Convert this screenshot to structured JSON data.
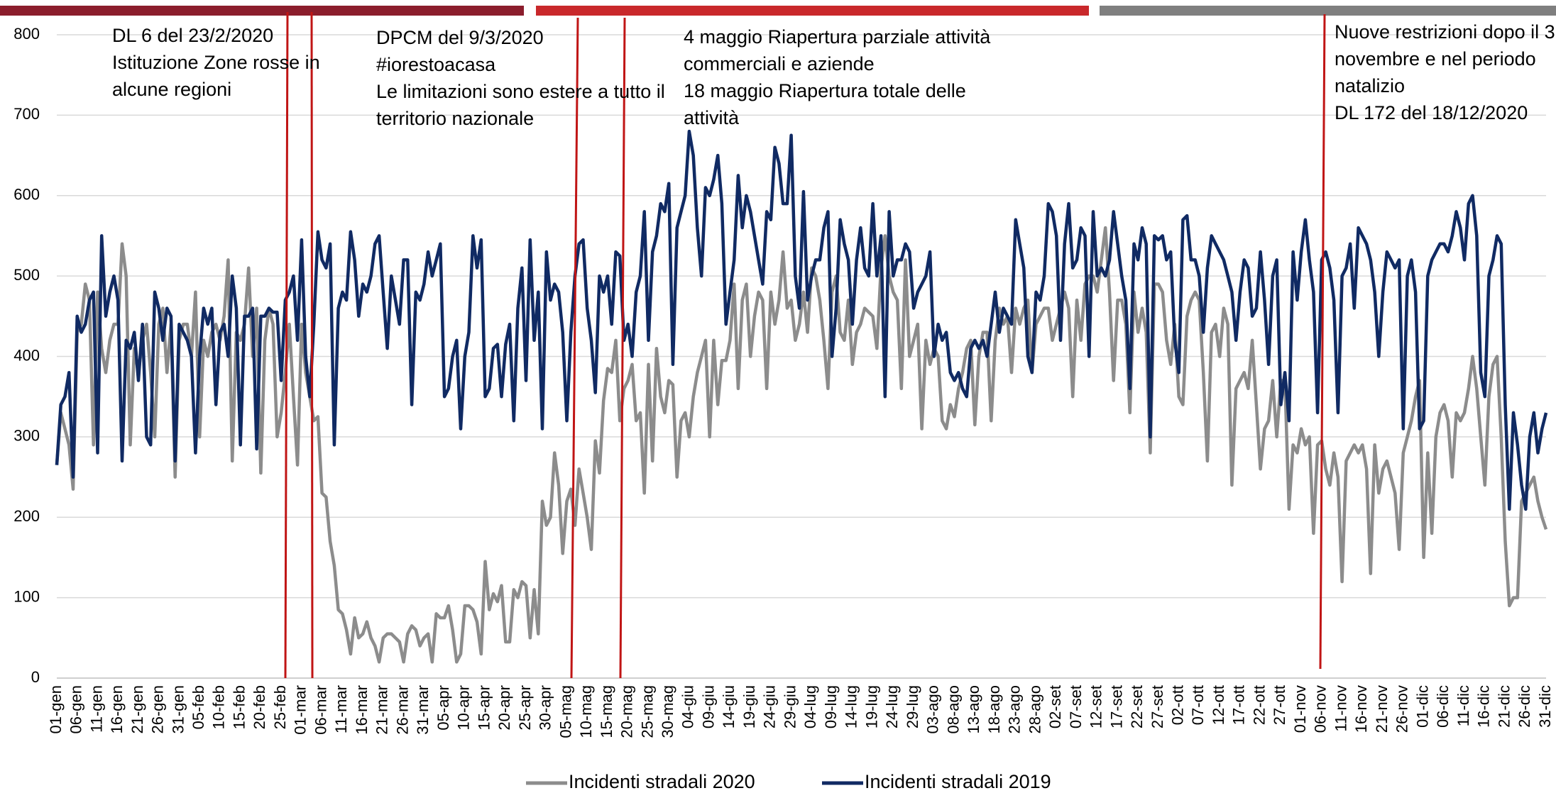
{
  "chart_data": {
    "type": "line",
    "categories": [
      "01-gen",
      null,
      null,
      null,
      null,
      "06-gen",
      null,
      null,
      null,
      null,
      "11-gen",
      null,
      null,
      null,
      null,
      "16-gen",
      null,
      null,
      null,
      null,
      "21-gen",
      null,
      null,
      null,
      null,
      "26-gen",
      null,
      null,
      null,
      null,
      "31-gen",
      null,
      null,
      null,
      null,
      "05-feb",
      null,
      null,
      null,
      null,
      "10-feb",
      null,
      null,
      null,
      null,
      "15-feb",
      null,
      null,
      null,
      null,
      "20-feb",
      null,
      null,
      null,
      null,
      "25-feb",
      null,
      null,
      null,
      null,
      "01-mar",
      null,
      null,
      null,
      null,
      "06-mar",
      null,
      null,
      null,
      null,
      "11-mar",
      null,
      null,
      null,
      null,
      "16-mar",
      null,
      null,
      null,
      null,
      "21-mar",
      null,
      null,
      null,
      null,
      "26-mar",
      null,
      null,
      null,
      null,
      "31-mar",
      null,
      null,
      null,
      null,
      "05-apr",
      null,
      null,
      null,
      null,
      "10-apr",
      null,
      null,
      null,
      null,
      "15-apr",
      null,
      null,
      null,
      null,
      "20-apr",
      null,
      null,
      null,
      null,
      "25-apr",
      null,
      null,
      null,
      null,
      "30-apr",
      null,
      null,
      null,
      null,
      "05-mag",
      null,
      null,
      null,
      null,
      "10-mag",
      null,
      null,
      null,
      null,
      "15-mag",
      null,
      null,
      null,
      null,
      "20-mag",
      null,
      null,
      null,
      null,
      "25-mag",
      null,
      null,
      null,
      null,
      "30-mag",
      null,
      null,
      null,
      null,
      "04-giu",
      null,
      null,
      null,
      null,
      "09-giu",
      null,
      null,
      null,
      null,
      "14-giu",
      null,
      null,
      null,
      null,
      "19-giu",
      null,
      null,
      null,
      null,
      "24-giu",
      null,
      null,
      null,
      null,
      "29-giu",
      null,
      null,
      null,
      null,
      "04-lug",
      null,
      null,
      null,
      null,
      "09-lug",
      null,
      null,
      null,
      null,
      "14-lug",
      null,
      null,
      null,
      null,
      "19-lug",
      null,
      null,
      null,
      null,
      "24-lug",
      null,
      null,
      null,
      null,
      "29-lug",
      null,
      null,
      null,
      null,
      "03-ago",
      null,
      null,
      null,
      null,
      "08-ago",
      null,
      null,
      null,
      null,
      "13-ago",
      null,
      null,
      null,
      null,
      "18-ago",
      null,
      null,
      null,
      null,
      "23-ago",
      null,
      null,
      null,
      null,
      "28-ago",
      null,
      null,
      null,
      null,
      "02-set",
      null,
      null,
      null,
      null,
      "07-set",
      null,
      null,
      null,
      null,
      "12-set",
      null,
      null,
      null,
      null,
      "17-set",
      null,
      null,
      null,
      null,
      "22-set",
      null,
      null,
      null,
      null,
      "27-set",
      null,
      null,
      null,
      null,
      "02-ott",
      null,
      null,
      null,
      null,
      "07-ott",
      null,
      null,
      null,
      null,
      "12-ott",
      null,
      null,
      null,
      null,
      "17-ott",
      null,
      null,
      null,
      null,
      "22-ott",
      null,
      null,
      null,
      null,
      "27-ott",
      null,
      null,
      null,
      null,
      "01-nov",
      null,
      null,
      null,
      null,
      "06-nov",
      null,
      null,
      null,
      null,
      "11-nov",
      null,
      null,
      null,
      null,
      "16-nov",
      null,
      null,
      null,
      null,
      "21-nov",
      null,
      null,
      null,
      null,
      "26-nov",
      null,
      null,
      null,
      null,
      "01-dic",
      null,
      null,
      null,
      null,
      "06-dic",
      null,
      null,
      null,
      null,
      "11-dic",
      null,
      null,
      null,
      null,
      "16-dic",
      null,
      null,
      null,
      null,
      "21-dic",
      null,
      null,
      null,
      null,
      "26-dic",
      null,
      null,
      null,
      null,
      "31-dic"
    ],
    "series": [
      {
        "name": "Incidenti stradali 2020",
        "color": "#8c8c8c",
        "values": [
          265,
          330,
          310,
          290,
          235,
          430,
          440,
          490,
          470,
          290,
          480,
          410,
          380,
          420,
          440,
          440,
          540,
          500,
          290,
          410,
          380,
          420,
          440,
          380,
          300,
          440,
          460,
          380,
          440,
          250,
          420,
          440,
          440,
          400,
          480,
          300,
          420,
          400,
          430,
          440,
          420,
          450,
          520,
          270,
          430,
          420,
          440,
          510,
          400,
          460,
          255,
          420,
          460,
          440,
          300,
          330,
          380,
          440,
          350,
          265,
          440,
          380,
          350,
          320,
          325,
          230,
          225,
          170,
          140,
          85,
          80,
          60,
          30,
          75,
          50,
          55,
          70,
          50,
          40,
          20,
          50,
          55,
          55,
          50,
          45,
          20,
          55,
          65,
          60,
          40,
          50,
          55,
          20,
          80,
          75,
          75,
          90,
          60,
          20,
          30,
          90,
          90,
          85,
          70,
          30,
          145,
          85,
          105,
          95,
          115,
          45,
          45,
          110,
          100,
          120,
          115,
          50,
          110,
          55,
          220,
          190,
          200,
          280,
          240,
          155,
          220,
          235,
          190,
          260,
          230,
          200,
          160,
          295,
          255,
          345,
          385,
          380,
          420,
          320,
          360,
          370,
          390,
          320,
          330,
          230,
          390,
          270,
          410,
          350,
          330,
          370,
          365,
          250,
          320,
          330,
          300,
          350,
          380,
          400,
          420,
          300,
          420,
          340,
          395,
          395,
          420,
          490,
          360,
          470,
          490,
          400,
          450,
          480,
          470,
          360,
          480,
          440,
          470,
          530,
          460,
          470,
          420,
          440,
          480,
          430,
          510,
          500,
          470,
          420,
          360,
          480,
          500,
          430,
          420,
          470,
          390,
          430,
          440,
          460,
          455,
          450,
          410,
          510,
          550,
          500,
          480,
          470,
          360,
          520,
          400,
          420,
          440,
          310,
          420,
          390,
          410,
          400,
          320,
          310,
          340,
          325,
          360,
          380,
          410,
          420,
          315,
          400,
          430,
          430,
          320,
          420,
          460,
          440,
          450,
          380,
          460,
          440,
          460,
          470,
          380,
          440,
          450,
          460,
          460,
          420,
          440,
          460,
          480,
          460,
          350,
          470,
          420,
          490,
          500,
          500,
          480,
          520,
          560,
          480,
          370,
          470,
          470,
          440,
          330,
          480,
          430,
          460,
          430,
          280,
          490,
          490,
          480,
          420,
          390,
          440,
          350,
          340,
          450,
          470,
          480,
          470,
          380,
          270,
          430,
          440,
          400,
          460,
          440,
          240,
          360,
          370,
          380,
          360,
          420,
          340,
          260,
          310,
          320,
          370,
          300,
          370,
          370,
          210,
          290,
          280,
          310,
          290,
          300,
          180,
          290,
          295,
          260,
          240,
          280,
          250,
          120,
          270,
          280,
          290,
          280,
          290,
          260,
          130,
          290,
          230,
          260,
          270,
          250,
          230,
          160,
          280,
          300,
          320,
          350,
          370,
          150,
          280,
          180,
          300,
          330,
          340,
          320,
          250,
          330,
          320,
          330,
          360,
          400,
          360,
          300,
          240,
          350,
          390,
          400,
          300,
          170,
          90,
          100,
          100,
          220,
          230,
          240,
          250,
          220,
          200,
          185
        ]
      },
      {
        "name": "Incidenti stradali 2019",
        "color": "#102a63",
        "values": [
          265,
          340,
          350,
          380,
          250,
          450,
          430,
          440,
          470,
          480,
          280,
          550,
          450,
          480,
          500,
          470,
          270,
          420,
          410,
          430,
          370,
          440,
          300,
          290,
          480,
          460,
          420,
          460,
          450,
          270,
          440,
          430,
          420,
          400,
          280,
          400,
          460,
          440,
          460,
          340,
          430,
          440,
          400,
          500,
          460,
          290,
          450,
          450,
          460,
          285,
          450,
          450,
          460,
          455,
          455,
          370,
          470,
          480,
          500,
          420,
          545,
          400,
          350,
          440,
          555,
          520,
          510,
          540,
          290,
          460,
          480,
          470,
          555,
          520,
          450,
          490,
          480,
          500,
          540,
          550,
          480,
          410,
          500,
          470,
          440,
          520,
          520,
          340,
          480,
          470,
          490,
          530,
          500,
          520,
          540,
          350,
          360,
          400,
          420,
          310,
          400,
          430,
          550,
          510,
          545,
          350,
          360,
          410,
          415,
          350,
          415,
          440,
          320,
          460,
          510,
          370,
          545,
          420,
          480,
          310,
          530,
          470,
          490,
          480,
          430,
          320,
          430,
          500,
          540,
          545,
          460,
          420,
          355,
          500,
          480,
          500,
          440,
          530,
          525,
          420,
          440,
          400,
          480,
          500,
          580,
          420,
          530,
          550,
          590,
          580,
          615,
          390,
          560,
          580,
          600,
          680,
          650,
          560,
          500,
          610,
          600,
          620,
          650,
          590,
          440,
          480,
          520,
          625,
          560,
          600,
          580,
          550,
          520,
          490,
          580,
          570,
          660,
          640,
          590,
          590,
          675,
          500,
          460,
          605,
          470,
          500,
          520,
          520,
          560,
          580,
          400,
          460,
          570,
          540,
          520,
          440,
          520,
          560,
          510,
          500,
          590,
          500,
          550,
          350,
          580,
          500,
          520,
          520,
          540,
          530,
          460,
          480,
          490,
          500,
          530,
          400,
          440,
          420,
          430,
          380,
          370,
          380,
          360,
          350,
          410,
          420,
          410,
          420,
          400,
          440,
          480,
          430,
          460,
          450,
          440,
          570,
          540,
          510,
          400,
          380,
          480,
          470,
          500,
          590,
          580,
          550,
          420,
          540,
          590,
          510,
          520,
          560,
          550,
          400,
          580,
          500,
          510,
          500,
          520,
          580,
          540,
          500,
          470,
          360,
          540,
          520,
          560,
          540,
          300,
          550,
          545,
          550,
          520,
          530,
          420,
          380,
          570,
          575,
          520,
          520,
          500,
          430,
          510,
          550,
          540,
          530,
          520,
          500,
          480,
          420,
          480,
          520,
          510,
          450,
          460,
          530,
          470,
          390,
          500,
          520,
          340,
          380,
          320,
          530,
          470,
          530,
          570,
          520,
          480,
          330,
          520,
          530,
          510,
          470,
          330,
          500,
          510,
          540,
          460,
          560,
          550,
          540,
          520,
          480,
          400,
          480,
          530,
          520,
          510,
          520,
          310,
          500,
          520,
          480,
          310,
          320,
          500,
          520,
          530,
          540,
          540,
          530,
          550,
          580,
          560,
          520,
          590,
          600,
          550,
          380,
          350,
          500,
          520,
          550,
          540,
          340,
          210,
          330,
          290,
          240,
          210,
          300,
          330,
          280,
          310,
          330
        ]
      }
    ],
    "ylim": [
      0,
      800
    ],
    "yticks": [
      0,
      100,
      200,
      300,
      400,
      500,
      600,
      700,
      800
    ],
    "grid": true,
    "annotations": [
      {
        "lines": [
          "DL 6 del 23/2/2020",
          "Istituzione Zone rosse in",
          "alcune regioni"
        ]
      },
      {
        "lines": [
          "DPCM del 9/3/2020",
          "#iorestoacasa",
          "Le limitazioni sono estere a tutto il",
          "territorio nazionale"
        ]
      },
      {
        "lines": [
          "4 maggio Riapertura parziale attività",
          "commerciali e aziende",
          "18 maggio Riapertura totale delle",
          "attività"
        ]
      },
      {
        "lines": [
          "Nuove restrizioni dopo il 3",
          "novembre e nel periodo",
          "natalizio",
          "DL 172 del 18/12/2020"
        ]
      }
    ]
  }
}
